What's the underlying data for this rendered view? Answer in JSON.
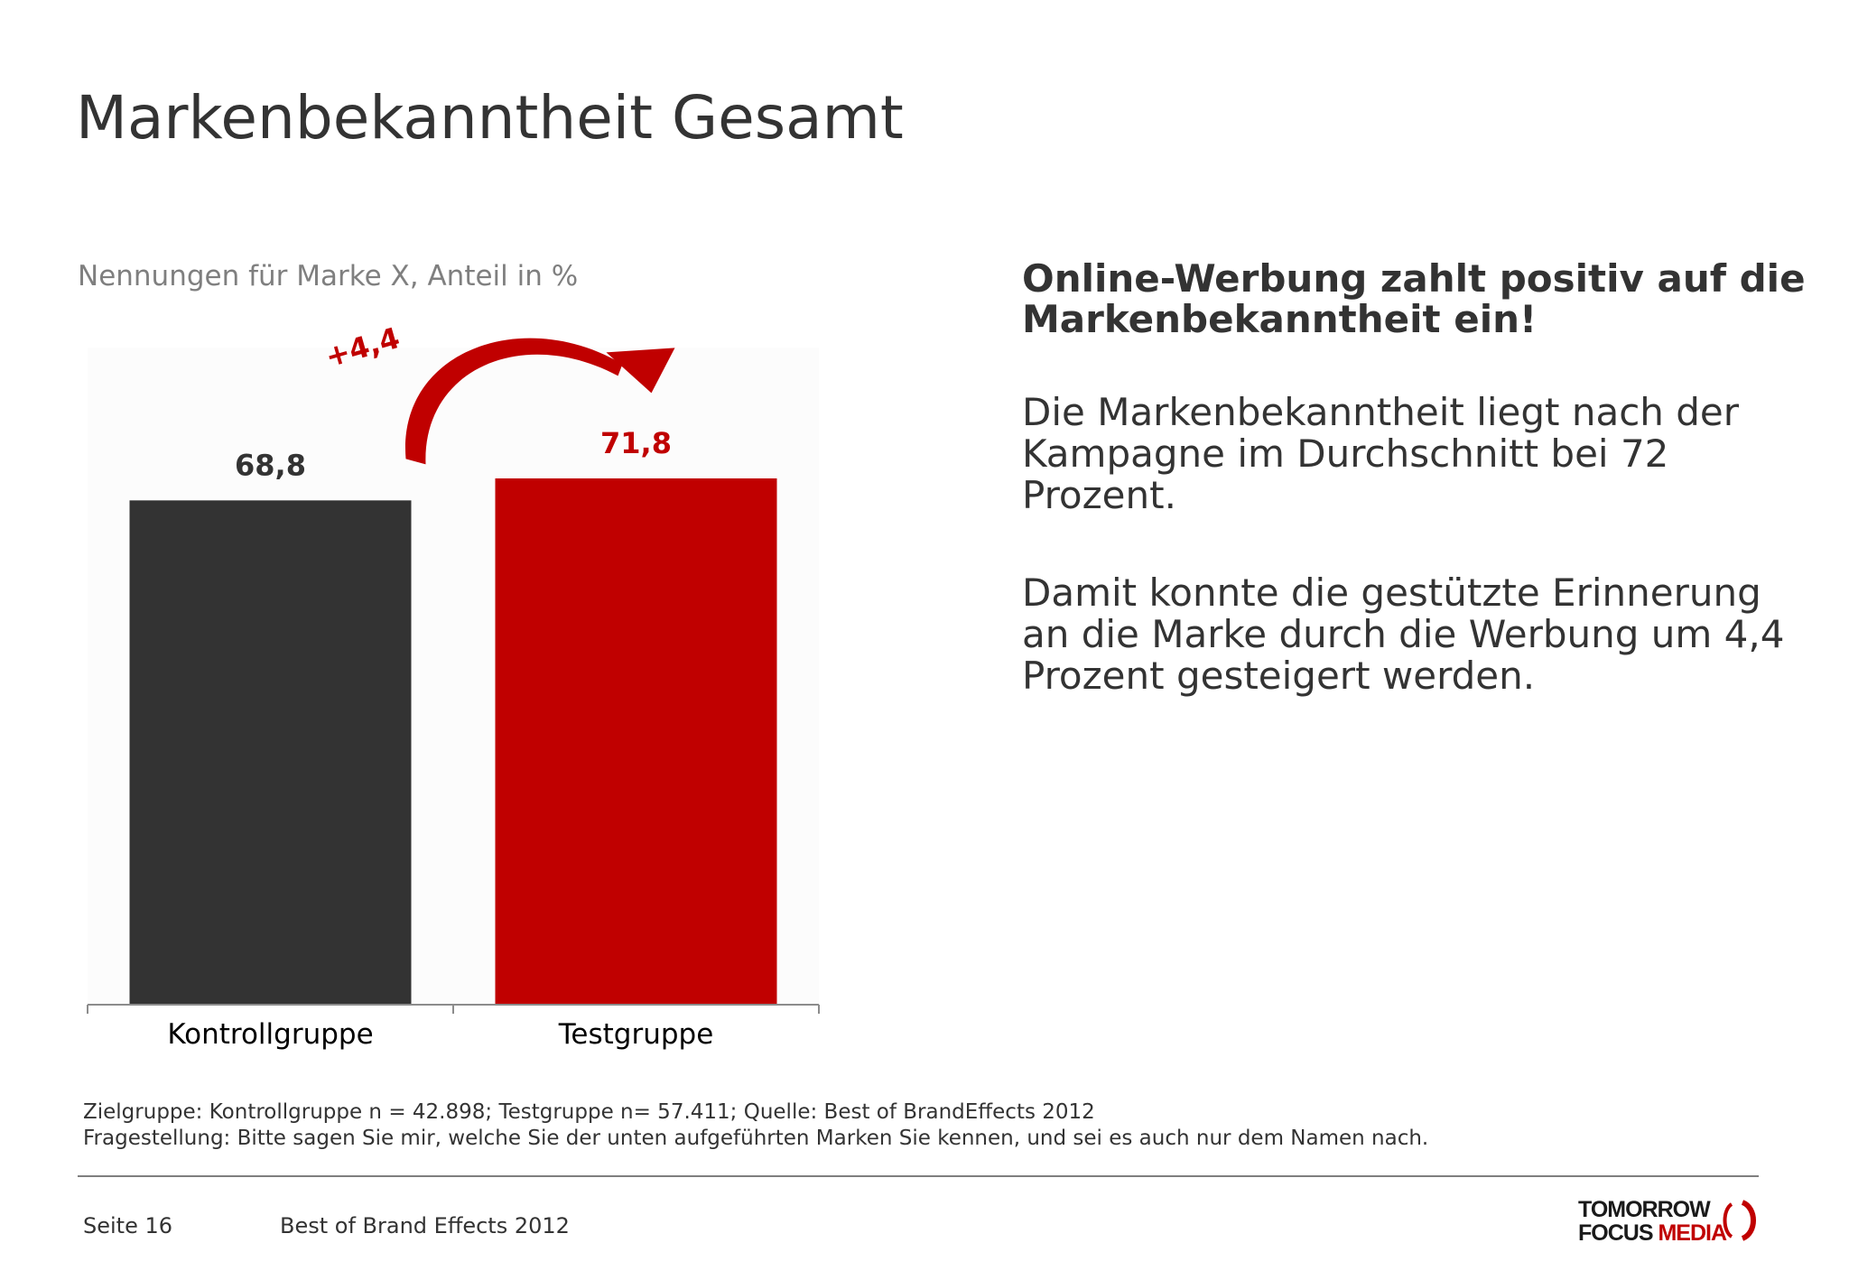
{
  "page": {
    "title": "Markenbekanntheit Gesamt",
    "headline": "Online-Werbung zahlt positiv auf die Markenbekanntheit ein!",
    "paragraph_1": "Die Markenbekanntheit liegt nach der Kampagne im Durchschnitt bei 72 Prozent.",
    "paragraph_2": "Damit konnte die gestützte Erinnerung an die Marke durch die Werbung um 4,4 Prozent gesteigert werden.",
    "footnote_1": "Zielgruppe: Kontrollgruppe n = 42.898; Testgruppe n= 57.411; Quelle: Best of BrandEffects 2012",
    "footnote_2": "Fragestellung: Bitte sagen Sie mir, welche Sie der unten aufgeführten Marken Sie kennen, und sei es auch nur dem Namen nach.",
    "footer_page": "Seite 16",
    "footer_doc": "Best of Brand Effects 2012",
    "logo_line1": "TOMORROW",
    "logo_line2a": "FOCUS",
    "logo_line2b": "MEDIA"
  },
  "colors": {
    "text": "#333333",
    "muted": "#7f7f7f",
    "bar_control": "#333333",
    "bar_test": "#c00000",
    "accent": "#c00000"
  },
  "chart_data": {
    "type": "bar",
    "subtitle": "Nennungen für Marke X, Anteil in %",
    "categories": [
      "Kontrollgruppe",
      "Testgruppe"
    ],
    "values": [
      68.8,
      71.8
    ],
    "value_labels": [
      "68,8",
      "71,8"
    ],
    "bar_colors": [
      "#333333",
      "#c00000"
    ],
    "label_colors": [
      "#333333",
      "#c00000"
    ],
    "annotation": "+4,4",
    "ylim": [
      0,
      100
    ],
    "grid": false,
    "legend": "none"
  }
}
